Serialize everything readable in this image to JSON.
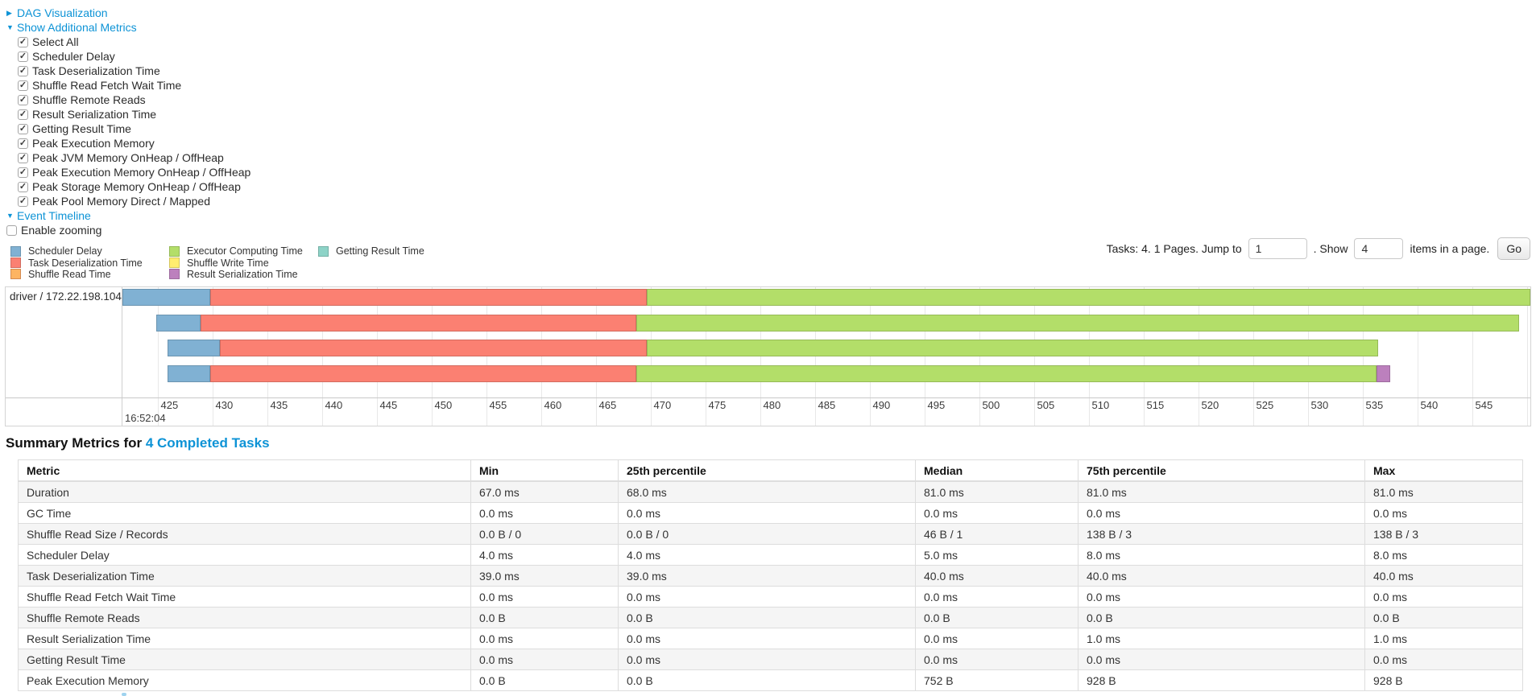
{
  "colors": {
    "link": "#0d93d6",
    "grid": "#e8e8e8"
  },
  "controls": {
    "dag": {
      "label": "DAG Visualization",
      "state": "collapsed"
    },
    "metrics": {
      "label": "Show Additional Metrics",
      "state": "expanded",
      "items": [
        {
          "label": "Select All",
          "checked": true
        },
        {
          "label": "Scheduler Delay",
          "checked": true
        },
        {
          "label": "Task Deserialization Time",
          "checked": true
        },
        {
          "label": "Shuffle Read Fetch Wait Time",
          "checked": true
        },
        {
          "label": "Shuffle Remote Reads",
          "checked": true
        },
        {
          "label": "Result Serialization Time",
          "checked": true
        },
        {
          "label": "Getting Result Time",
          "checked": true
        },
        {
          "label": "Peak Execution Memory",
          "checked": true
        },
        {
          "label": "Peak JVM Memory OnHeap / OffHeap",
          "checked": true
        },
        {
          "label": "Peak Execution Memory OnHeap / OffHeap",
          "checked": true
        },
        {
          "label": "Peak Storage Memory OnHeap / OffHeap",
          "checked": true
        },
        {
          "label": "Peak Pool Memory Direct / Mapped",
          "checked": true
        }
      ]
    },
    "timeline": {
      "label": "Event Timeline",
      "state": "expanded"
    },
    "enable_zooming": {
      "label": "Enable zooming",
      "checked": false
    }
  },
  "series_colors": {
    "scheduler_delay": {
      "label": "Scheduler Delay",
      "fill": "#80B1D3",
      "stroke": "#6B94B0"
    },
    "task_deserialization": {
      "label": "Task Deserialization Time",
      "fill": "#FB8072",
      "stroke": "#D26B5F"
    },
    "shuffle_read": {
      "label": "Shuffle Read Time",
      "fill": "#FDB462",
      "stroke": "#D38A51"
    },
    "executor_computing": {
      "label": "Executor Computing Time",
      "fill": "#B3DE69",
      "stroke": "#95B957"
    },
    "shuffle_write": {
      "label": "Shuffle Write Time",
      "fill": "#FFED6F",
      "stroke": "#D5C65C"
    },
    "result_serialization": {
      "label": "Result Serialization Time",
      "fill": "#BC80BD",
      "stroke": "#9D6B9E"
    },
    "getting_result": {
      "label": "Getting Result Time",
      "fill": "#8DD3C7",
      "stroke": "#75B0A6"
    }
  },
  "legend": {
    "columns": [
      [
        "scheduler_delay",
        "task_deserialization",
        "shuffle_read"
      ],
      [
        "executor_computing",
        "shuffle_write",
        "result_serialization"
      ],
      [
        "getting_result"
      ]
    ]
  },
  "pagination": {
    "tasks_label": "Tasks: 4. 1 Pages. Jump to",
    "jump_value": "1",
    "between_label": ". Show",
    "show_value": "4",
    "items_label": "items in a page.",
    "go_label": "Go"
  },
  "chart_data": {
    "type": "timeline-gantt",
    "row_label": "driver / 172.22.198.104",
    "x_axis": {
      "major_label": "16:52:04",
      "domain_min": 421.8,
      "domain_max": 550.33,
      "tick_start": 425,
      "tick_end": 550,
      "tick_step": 5
    },
    "tasks": [
      {
        "segments": [
          {
            "key": "scheduler_delay",
            "from": 421.8,
            "to": 429.8
          },
          {
            "key": "task_deserialization",
            "from": 429.8,
            "to": 469.7
          },
          {
            "key": "executor_computing",
            "from": 469.7,
            "to": 550.33
          }
        ]
      },
      {
        "segments": [
          {
            "key": "scheduler_delay",
            "from": 424.9,
            "to": 428.9
          },
          {
            "key": "task_deserialization",
            "from": 428.9,
            "to": 468.7
          },
          {
            "key": "executor_computing",
            "from": 468.7,
            "to": 549.3
          }
        ]
      },
      {
        "segments": [
          {
            "key": "scheduler_delay",
            "from": 425.9,
            "to": 430.7
          },
          {
            "key": "task_deserialization",
            "from": 430.7,
            "to": 469.7
          },
          {
            "key": "executor_computing",
            "from": 469.7,
            "to": 536.4
          }
        ]
      },
      {
        "segments": [
          {
            "key": "scheduler_delay",
            "from": 425.9,
            "to": 429.8
          },
          {
            "key": "task_deserialization",
            "from": 429.8,
            "to": 468.7
          },
          {
            "key": "executor_computing",
            "from": 468.7,
            "to": 536.3
          },
          {
            "key": "result_serialization",
            "from": 536.3,
            "to": 537.5
          }
        ]
      }
    ]
  },
  "summary": {
    "title_prefix": "Summary Metrics for ",
    "title_link": "4 Completed Tasks"
  },
  "table": {
    "headers": [
      "Metric",
      "Min",
      "25th percentile",
      "Median",
      "75th percentile",
      "Max"
    ],
    "rows": [
      {
        "metric": "Duration",
        "values": [
          "67.0 ms",
          "68.0 ms",
          "81.0 ms",
          "81.0 ms",
          "81.0 ms"
        ]
      },
      {
        "metric": "GC Time",
        "values": [
          "0.0 ms",
          "0.0 ms",
          "0.0 ms",
          "0.0 ms",
          "0.0 ms"
        ]
      },
      {
        "metric": "Shuffle Read Size / Records",
        "values": [
          "0.0 B / 0",
          "0.0 B / 0",
          "46 B / 1",
          "138 B / 3",
          "138 B / 3"
        ]
      },
      {
        "metric": "Scheduler Delay",
        "values": [
          "4.0 ms",
          "4.0 ms",
          "5.0 ms",
          "8.0 ms",
          "8.0 ms"
        ]
      },
      {
        "metric": "Task Deserialization Time",
        "values": [
          "39.0 ms",
          "39.0 ms",
          "40.0 ms",
          "40.0 ms",
          "40.0 ms"
        ]
      },
      {
        "metric": "Shuffle Read Fetch Wait Time",
        "values": [
          "0.0 ms",
          "0.0 ms",
          "0.0 ms",
          "0.0 ms",
          "0.0 ms"
        ]
      },
      {
        "metric": "Shuffle Remote Reads",
        "values": [
          "0.0 B",
          "0.0 B",
          "0.0 B",
          "0.0 B",
          "0.0 B"
        ]
      },
      {
        "metric": "Result Serialization Time",
        "values": [
          "0.0 ms",
          "0.0 ms",
          "0.0 ms",
          "1.0 ms",
          "1.0 ms"
        ]
      },
      {
        "metric": "Getting Result Time",
        "values": [
          "0.0 ms",
          "0.0 ms",
          "0.0 ms",
          "0.0 ms",
          "0.0 ms"
        ]
      },
      {
        "metric": "Peak Execution Memory",
        "values": [
          "0.0 B",
          "0.0 B",
          "752 B",
          "928 B",
          "928 B"
        ]
      }
    ]
  }
}
